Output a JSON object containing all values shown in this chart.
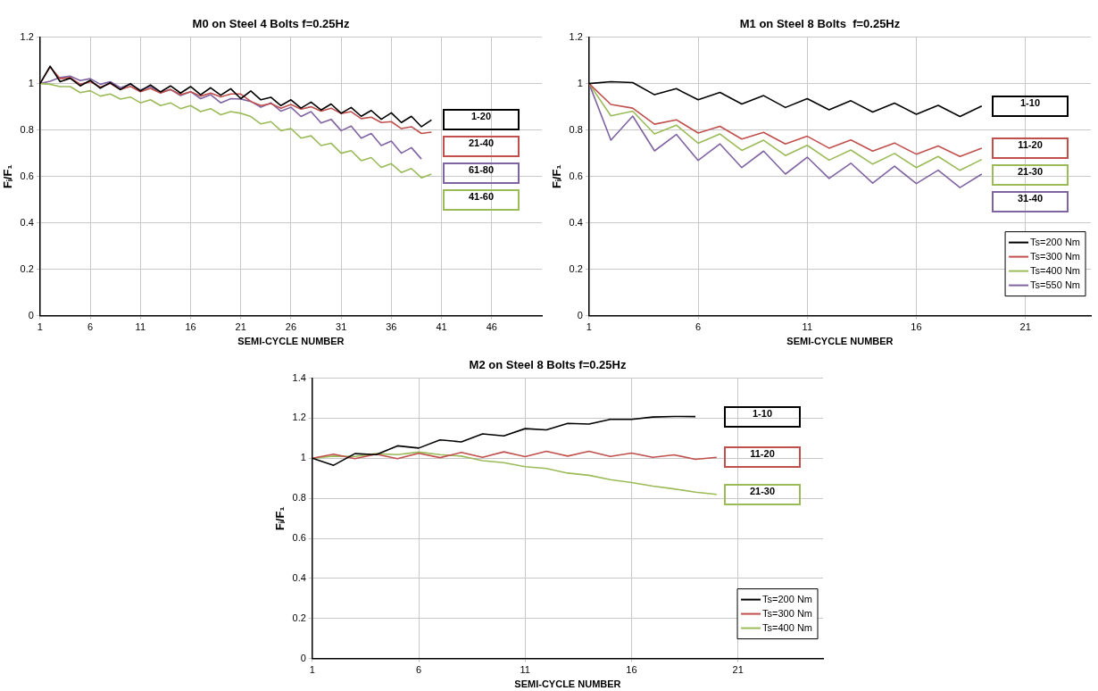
{
  "chart_data": [
    {
      "type": "line",
      "title": "M0 on Steel 4 Bolts f=0.25Hz",
      "xlabel": "SEMI-CYCLE NUMBER",
      "ylabel": "Fᵢ/F₁",
      "x": [
        1,
        2,
        3,
        4,
        5,
        6,
        7,
        8,
        9,
        10,
        11,
        12,
        13,
        14,
        15,
        16,
        17,
        18,
        19,
        20,
        21,
        22,
        23,
        24,
        25,
        26,
        27,
        28,
        29,
        30,
        31,
        32,
        33,
        34,
        35,
        36,
        37,
        38,
        39,
        40
      ],
      "series": [
        {
          "color": "#000000",
          "values": [
            1.0,
            1.075,
            1.008,
            1.023,
            0.99,
            1.014,
            0.98,
            1.004,
            0.974,
            1.0,
            0.968,
            0.994,
            0.964,
            0.99,
            0.959,
            0.987,
            0.952,
            0.982,
            0.95,
            0.978,
            0.935,
            0.968,
            0.93,
            0.941,
            0.905,
            0.93,
            0.894,
            0.92,
            0.886,
            0.912,
            0.872,
            0.897,
            0.859,
            0.884,
            0.846,
            0.874,
            0.832,
            0.859,
            0.814,
            0.843
          ]
        },
        {
          "color": "#c0504d",
          "values": [
            1.0,
            1.071,
            1.021,
            1.026,
            0.997,
            1.008,
            0.985,
            1.0,
            0.974,
            0.988,
            0.965,
            0.979,
            0.959,
            0.975,
            0.952,
            0.965,
            0.946,
            0.959,
            0.943,
            0.955,
            0.955,
            0.923,
            0.905,
            0.914,
            0.894,
            0.91,
            0.89,
            0.9,
            0.881,
            0.894,
            0.871,
            0.879,
            0.849,
            0.855,
            0.832,
            0.836,
            0.806,
            0.814,
            0.785,
            0.791
          ]
        },
        {
          "color": "#9bbb59",
          "values": [
            1.0,
            0.997,
            0.987,
            0.987,
            0.961,
            0.969,
            0.946,
            0.955,
            0.933,
            0.942,
            0.917,
            0.93,
            0.905,
            0.917,
            0.892,
            0.905,
            0.879,
            0.892,
            0.866,
            0.879,
            0.872,
            0.858,
            0.826,
            0.836,
            0.797,
            0.806,
            0.765,
            0.775,
            0.733,
            0.743,
            0.7,
            0.711,
            0.668,
            0.681,
            0.639,
            0.655,
            0.617,
            0.634,
            0.594,
            0.61
          ]
        },
        {
          "color": "#8064a2",
          "values": [
            1.0,
            1.01,
            1.026,
            1.032,
            1.013,
            1.021,
            0.997,
            1.008,
            0.982,
            0.997,
            0.972,
            0.987,
            0.961,
            0.974,
            0.948,
            0.965,
            0.935,
            0.952,
            0.917,
            0.935,
            0.933,
            0.923,
            0.898,
            0.917,
            0.881,
            0.898,
            0.858,
            0.879,
            0.83,
            0.846,
            0.797,
            0.817,
            0.765,
            0.785,
            0.733,
            0.752,
            0.7,
            0.724,
            0.675,
            null
          ]
        }
      ],
      "xlim": [
        1,
        51
      ],
      "xticks": [
        1,
        6,
        11,
        16,
        21,
        26,
        31,
        36,
        41,
        46
      ],
      "ylim": [
        0,
        1.2
      ],
      "yticks": [
        0,
        0.2,
        0.4,
        0.6,
        0.8,
        1,
        1.2
      ],
      "grid": true,
      "marker": "none",
      "line_style": "solid",
      "annotations": [
        "1-20",
        "21-40",
        "61-80",
        "41-60"
      ]
    },
    {
      "type": "line",
      "title": "M1 on Steel 8 Bolts  f=0.25Hz",
      "xlabel": "SEMI-CYCLE NUMBER",
      "ylabel": "Fᵢ/F₁",
      "x": [
        1,
        2,
        3,
        4,
        5,
        6,
        7,
        8,
        9,
        10,
        11,
        12,
        13,
        14,
        15,
        16,
        17,
        18,
        19
      ],
      "series": [
        {
          "name": "Ts=200 Nm",
          "color": "#000000",
          "values": [
            1.0,
            1.008,
            1.004,
            0.952,
            0.978,
            0.93,
            0.962,
            0.912,
            0.948,
            0.897,
            0.935,
            0.887,
            0.926,
            0.877,
            0.916,
            0.868,
            0.906,
            0.858,
            0.903
          ]
        },
        {
          "name": "Ts=300 Nm",
          "color": "#c0504d",
          "values": [
            1.0,
            0.91,
            0.894,
            0.825,
            0.844,
            0.787,
            0.816,
            0.761,
            0.79,
            0.74,
            0.773,
            0.722,
            0.757,
            0.709,
            0.744,
            0.696,
            0.731,
            0.686,
            0.722
          ]
        },
        {
          "name": "Ts=400 Nm",
          "color": "#9bbb59",
          "values": [
            1.0,
            0.861,
            0.881,
            0.783,
            0.821,
            0.743,
            0.783,
            0.712,
            0.756,
            0.69,
            0.734,
            0.67,
            0.714,
            0.653,
            0.699,
            0.638,
            0.686,
            0.626,
            0.673
          ]
        },
        {
          "name": "Ts=550 Nm",
          "color": "#8064a2",
          "values": [
            1.0,
            0.756,
            0.86,
            0.71,
            0.781,
            0.669,
            0.74,
            0.638,
            0.709,
            0.61,
            0.683,
            0.591,
            0.657,
            0.571,
            0.644,
            0.569,
            0.627,
            0.552,
            0.61
          ]
        }
      ],
      "xlim": [
        1,
        24
      ],
      "xticks": [
        1,
        6,
        11,
        16,
        21
      ],
      "ylim": [
        0,
        1.2
      ],
      "yticks": [
        0,
        0.2,
        0.4,
        0.6,
        0.8,
        1,
        1.2
      ],
      "grid": true,
      "marker": "none",
      "line_style": "solid",
      "legend": "bottom right",
      "annotations": [
        "1-10",
        "11-20",
        "21-30",
        "31-40"
      ]
    },
    {
      "type": "line",
      "title": "M2 on Steel 8 Bolts f=0.25Hz",
      "xlabel": "SEMI-CYCLE NUMBER",
      "ylabel": "Fᵢ/F₁",
      "x": [
        1,
        2,
        3,
        4,
        5,
        6,
        7,
        8,
        9,
        10,
        11,
        12,
        13,
        14,
        15,
        16,
        17,
        18,
        19,
        20
      ],
      "series": [
        {
          "name": "Ts=200 Nm",
          "color": "#000000",
          "values": [
            1.0,
            0.965,
            1.023,
            1.018,
            1.062,
            1.051,
            1.092,
            1.082,
            1.122,
            1.112,
            1.148,
            1.142,
            1.174,
            1.171,
            1.194,
            1.194,
            1.206,
            1.209,
            1.208,
            null
          ]
        },
        {
          "name": "Ts=300 Nm",
          "color": "#c0504d",
          "values": [
            1.0,
            1.02,
            0.998,
            1.02,
            0.998,
            1.025,
            1.003,
            1.029,
            1.005,
            1.032,
            1.008,
            1.035,
            1.011,
            1.035,
            1.009,
            1.026,
            1.005,
            1.017,
            0.995,
            1.005
          ]
        },
        {
          "name": "Ts=400 Nm",
          "color": "#9bbb59",
          "values": [
            1.0,
            1.011,
            1.009,
            1.023,
            1.018,
            1.031,
            1.018,
            1.011,
            0.988,
            0.978,
            0.958,
            0.949,
            0.926,
            0.915,
            0.893,
            0.879,
            0.861,
            0.847,
            0.831,
            0.82
          ]
        }
      ],
      "xlim": [
        1,
        25
      ],
      "xticks": [
        1,
        6,
        11,
        16,
        21
      ],
      "ylim": [
        0,
        1.4
      ],
      "yticks": [
        0,
        0.2,
        0.4,
        0.6,
        0.8,
        1,
        1.2,
        1.4
      ],
      "grid": true,
      "marker": "none",
      "line_style": "solid",
      "legend": "bottom right",
      "annotations": [
        "1-10",
        "11-20",
        "21-30"
      ]
    }
  ]
}
